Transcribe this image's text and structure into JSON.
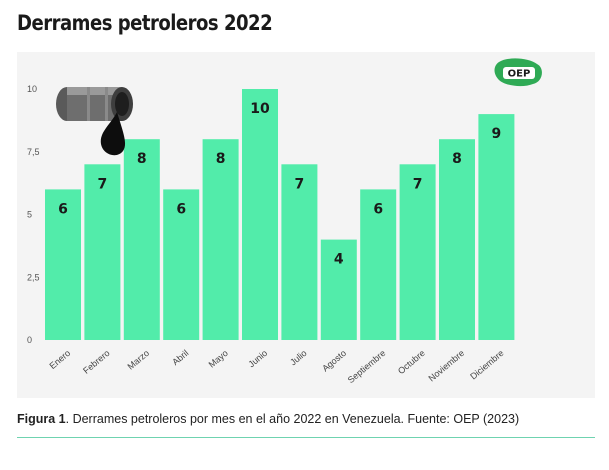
{
  "title": "Derrames petroleros 2022",
  "caption": {
    "label": "Figura 1",
    "text": ". Derrames petroleros por mes en el año 2022 en Venezuela. Fuente: OEP (2023)"
  },
  "logo": {
    "text": "OEP"
  },
  "icons": {
    "barrel": "oil-barrel-icon",
    "logo": "oep-logo"
  },
  "colors": {
    "bar": "#52ecaa",
    "panel": "#f4f4f4",
    "rule": "#6fd3b0"
  },
  "chart_data": {
    "type": "bar",
    "title": "",
    "xlabel": "",
    "ylabel": "",
    "categories": [
      "Enero",
      "Febrero",
      "Marzo",
      "Abril",
      "Mayo",
      "Junio",
      "Julio",
      "Agosto",
      "Septiembre",
      "Octubre",
      "Noviembre",
      "Diciembre"
    ],
    "values": [
      6,
      7,
      8,
      6,
      8,
      10,
      7,
      4,
      6,
      7,
      8,
      9
    ],
    "value_labels": [
      "6",
      "7",
      "8",
      "6",
      "8",
      "10",
      "7",
      "4",
      "6",
      "7",
      "8",
      "9"
    ],
    "ylim": [
      0,
      10
    ],
    "yticks": [
      0,
      2.5,
      5,
      7.5,
      10
    ],
    "ytick_labels": [
      "0",
      "2,5",
      "5",
      "7,5",
      "10"
    ],
    "grid": false,
    "legend": "none"
  }
}
